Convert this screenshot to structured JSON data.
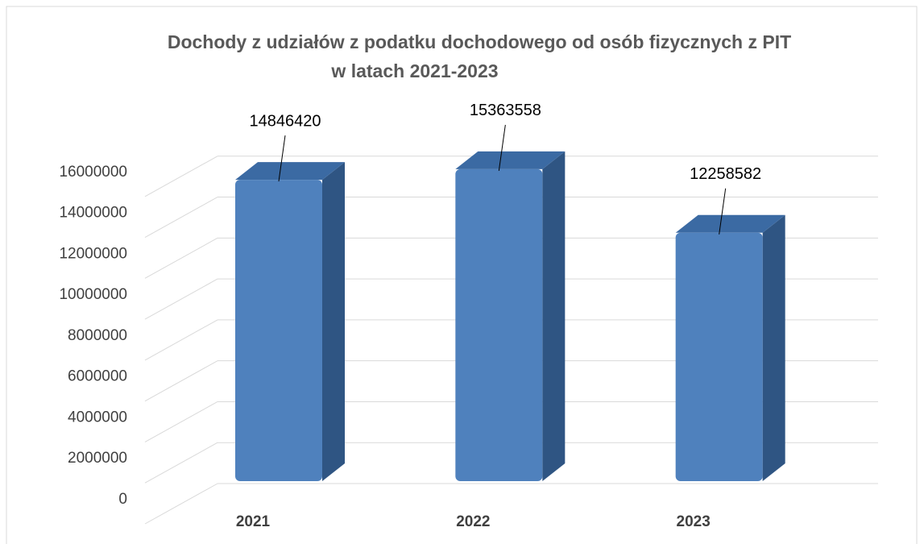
{
  "chart_data": {
    "type": "bar3d",
    "title": [
      "Dochody z udziałów z podatku dochodowego od osób fizycznych z PIT",
      "w latach 2021-2023"
    ],
    "categories": [
      "2021",
      "2022",
      "2023"
    ],
    "values": [
      14846420,
      15363558,
      12258582
    ],
    "color": "#4f81bd",
    "ylim": [
      0,
      18000000
    ],
    "yticks": [
      0,
      2000000,
      4000000,
      6000000,
      8000000,
      10000000,
      12000000,
      14000000,
      16000000
    ],
    "grid": true
  }
}
